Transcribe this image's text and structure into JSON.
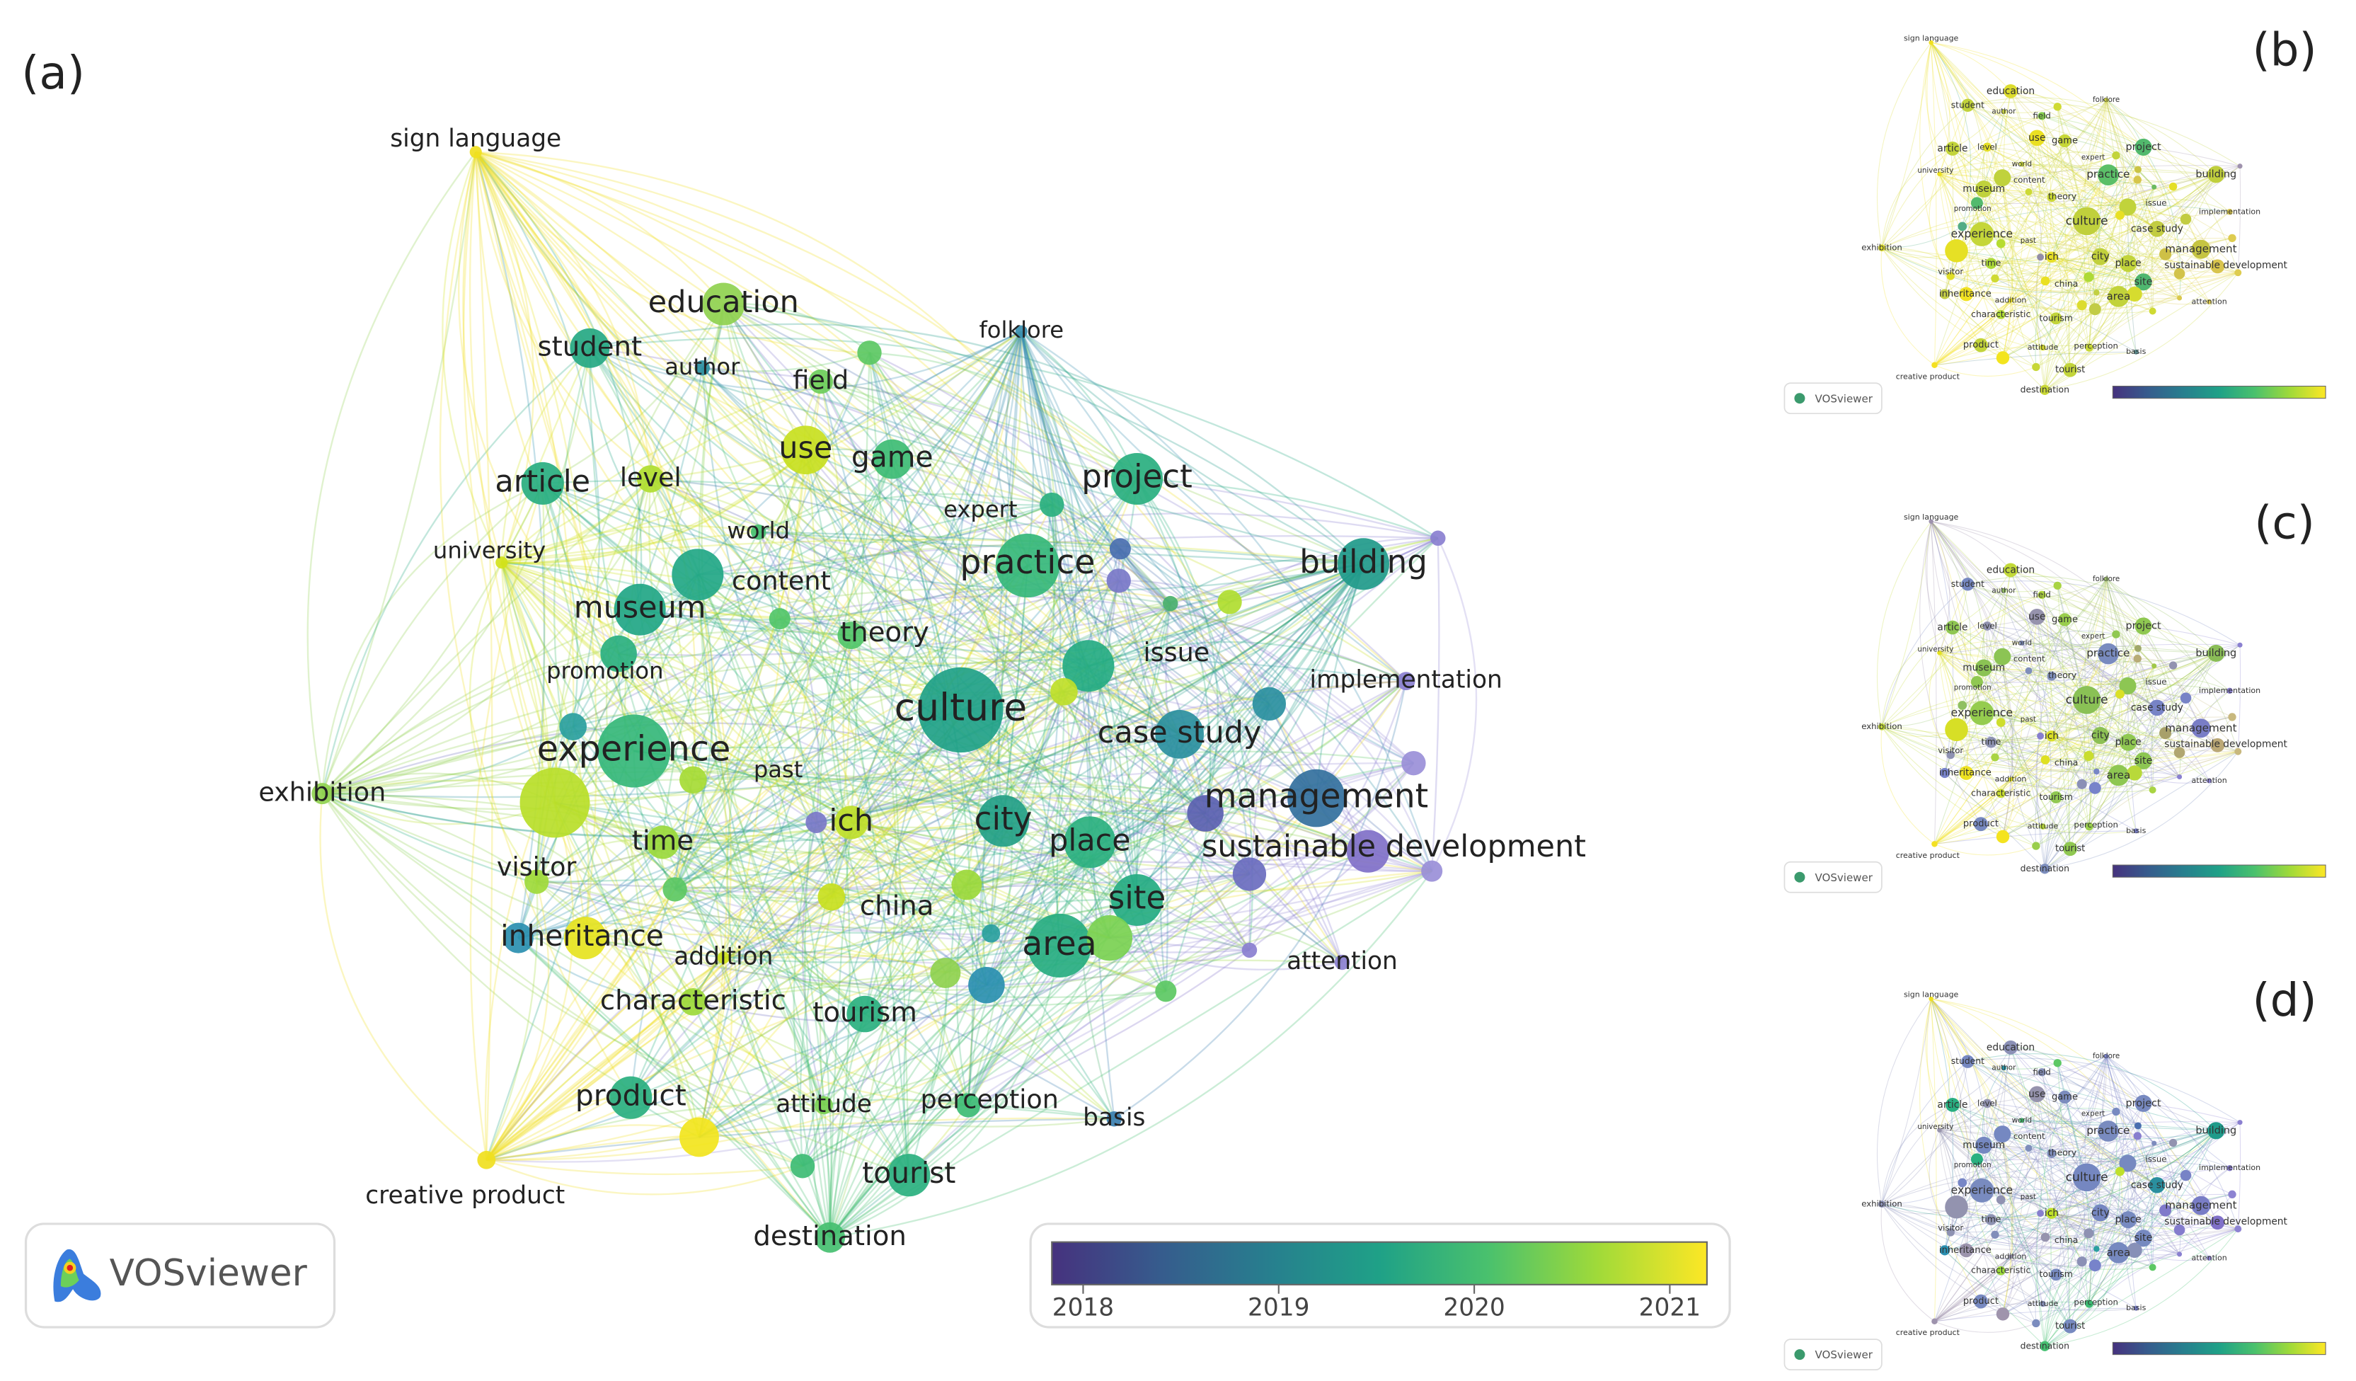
{
  "panels": {
    "a": "(a)",
    "b": "(b)",
    "c": "(c)",
    "d": "(d)"
  },
  "logo": "VOSviewer",
  "nodes": [
    {
      "label": "sign language",
      "color": "#f0e020"
    },
    {
      "label": "education",
      "color": "#8fd14f"
    },
    {
      "label": "folklore",
      "color": "#3a8fb0"
    },
    {
      "label": "student",
      "color": "#25a883"
    },
    {
      "label": "author",
      "color": "#2a8fa0"
    },
    {
      "label": "field",
      "color": "#6ccd5a"
    },
    {
      "label": "use",
      "color": "#c8e020"
    },
    {
      "label": "game",
      "color": "#3dbc74"
    },
    {
      "label": "article",
      "color": "#28ae80"
    },
    {
      "label": "level",
      "color": "#b0dd2f"
    },
    {
      "label": "project",
      "color": "#29af7f"
    },
    {
      "label": "expert",
      "color": "#2ab07f"
    },
    {
      "label": "world",
      "color": "#44bf70"
    },
    {
      "label": "university",
      "color": "#d2e21b"
    },
    {
      "label": "content",
      "color": "#22a785"
    },
    {
      "label": "practice",
      "color": "#35b779"
    },
    {
      "label": "building",
      "color": "#1f9a8a"
    },
    {
      "label": "museum",
      "color": "#21a685"
    },
    {
      "label": "theory",
      "color": "#52c569"
    },
    {
      "label": "issue",
      "color": "#25ab82"
    },
    {
      "label": "promotion",
      "color": "#2ab07f"
    },
    {
      "label": "implementation",
      "color": "#8a7fd0"
    },
    {
      "label": "culture",
      "color": "#1fa187"
    },
    {
      "label": "experience",
      "color": "#35b779"
    },
    {
      "label": "case study",
      "color": "#2a8f9e"
    },
    {
      "label": "past",
      "color": "#a6db35"
    },
    {
      "label": "exhibition",
      "color": "#8fd14f"
    },
    {
      "label": "management",
      "color": "#33709d"
    },
    {
      "label": "ich",
      "color": "#bfe02a"
    },
    {
      "label": "city",
      "color": "#23a085"
    },
    {
      "label": "time",
      "color": "#9ad93c"
    },
    {
      "label": "place",
      "color": "#2ab07f"
    },
    {
      "label": "sustainable development",
      "color": "#8070c8"
    },
    {
      "label": "visitor",
      "color": "#a0da38"
    },
    {
      "label": "china",
      "color": "#c8e020"
    },
    {
      "label": "site",
      "color": "#25ab82"
    },
    {
      "label": "inheritance",
      "color": "#2a8fb0"
    },
    {
      "label": "addition",
      "color": "#cde11d"
    },
    {
      "label": "area",
      "color": "#27ad81"
    },
    {
      "label": "attention",
      "color": "#8a7fd0"
    },
    {
      "label": "characteristic",
      "color": "#9cd93b"
    },
    {
      "label": "tourism",
      "color": "#2ab07f"
    },
    {
      "label": "product",
      "color": "#29af7f"
    },
    {
      "label": "attitude",
      "color": "#7ad151"
    },
    {
      "label": "perception",
      "color": "#3dbc74"
    },
    {
      "label": "basis",
      "color": "#3a7fb0"
    },
    {
      "label": "tourist",
      "color": "#2ab07f"
    },
    {
      "label": "creative product",
      "color": "#f0e020"
    },
    {
      "label": "destination",
      "color": "#45bf70"
    }
  ],
  "colorbar": {
    "range": [
      2017.84,
      2021.19
    ],
    "ticks": [
      2018,
      2019,
      2020,
      2021
    ],
    "colors": [
      "#46327e",
      "#365c8d",
      "#277f8e",
      "#1fa187",
      "#4ac16d",
      "#a0da39",
      "#fde725"
    ]
  }
}
